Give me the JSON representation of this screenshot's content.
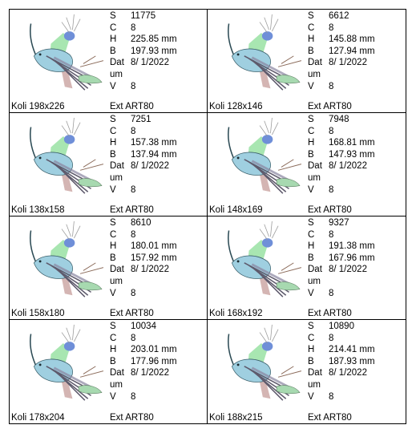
{
  "labels": {
    "s": "S",
    "c": "C",
    "h": "H",
    "b": "B",
    "datum": "Datum",
    "v": "V",
    "ext": "Ext"
  },
  "items": [
    {
      "name": "Koli 198x226",
      "stitches": "11775",
      "colors": "8",
      "height": "225.85 mm",
      "width": "197.93 mm",
      "date": "8/ 1/2022",
      "version": "8",
      "ext": "ART80"
    },
    {
      "name": "Koli 128x146",
      "stitches": "6612",
      "colors": "8",
      "height": "145.88 mm",
      "width": "127.94 mm",
      "date": "8/ 1/2022",
      "version": "8",
      "ext": "ART80"
    },
    {
      "name": "Koli 138x158",
      "stitches": "7251",
      "colors": "8",
      "height": "157.38 mm",
      "width": "137.94 mm",
      "date": "8/ 1/2022",
      "version": "8",
      "ext": "ART80"
    },
    {
      "name": "Koli 148x169",
      "stitches": "7948",
      "colors": "8",
      "height": "168.81 mm",
      "width": "147.93 mm",
      "date": "8/ 1/2022",
      "version": "8",
      "ext": "ART80"
    },
    {
      "name": "Koli 158x180",
      "stitches": "8610",
      "colors": "8",
      "height": "180.01 mm",
      "width": "157.92 mm",
      "date": "8/ 1/2022",
      "version": "8",
      "ext": "ART80"
    },
    {
      "name": "Koli 168x192",
      "stitches": "9327",
      "colors": "8",
      "height": "191.38 mm",
      "width": "167.96 mm",
      "date": "8/ 1/2022",
      "version": "8",
      "ext": "ART80"
    },
    {
      "name": "Koli 178x204",
      "stitches": "10034",
      "colors": "8",
      "height": "203.01 mm",
      "width": "177.96 mm",
      "date": "8/ 1/2022",
      "version": "8",
      "ext": "ART80"
    },
    {
      "name": "Koli 188x215",
      "stitches": "10890",
      "colors": "8",
      "height": "214.41 mm",
      "width": "187.93 mm",
      "date": "8/ 1/2022",
      "version": "8",
      "ext": "ART80"
    }
  ],
  "colors": {
    "border": "#000000",
    "background": "#ffffff"
  }
}
